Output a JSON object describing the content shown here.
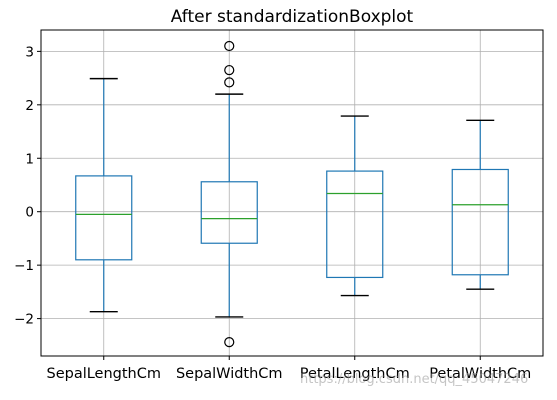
{
  "chart_data": {
    "type": "box",
    "title": "After standardizationBoxplot",
    "xlabel": "",
    "ylabel": "",
    "ylim": [
      -2.7,
      3.4
    ],
    "yticks": [
      3,
      2,
      1,
      0,
      -1,
      -2
    ],
    "ytick_labels": [
      "3",
      "2",
      "1",
      "0",
      "−1",
      "−2"
    ],
    "grid": true,
    "categories": [
      "SepalLengthCm",
      "SepalWidthCm",
      "PetalLengthCm",
      "PetalWidthCm"
    ],
    "series": [
      {
        "q1": -0.9,
        "median": -0.05,
        "q3": 0.67,
        "whisker_low": -1.87,
        "whisker_high": 2.49,
        "fliers": []
      },
      {
        "q1": -0.59,
        "median": -0.13,
        "q3": 0.56,
        "whisker_low": -1.97,
        "whisker_high": 2.2,
        "fliers": [
          3.1,
          2.65,
          2.42,
          -2.44
        ]
      },
      {
        "q1": -1.23,
        "median": 0.34,
        "q3": 0.76,
        "whisker_low": -1.57,
        "whisker_high": 1.79,
        "fliers": []
      },
      {
        "q1": -1.18,
        "median": 0.13,
        "q3": 0.79,
        "whisker_low": -1.45,
        "whisker_high": 1.71,
        "fliers": []
      }
    ],
    "colors": {
      "box": "#1f77b4",
      "median": "#2ca02c",
      "grid": "#b0b0b0",
      "cap": "#000000"
    }
  },
  "watermark": "https://blog.csdn.net/qq_45047246"
}
